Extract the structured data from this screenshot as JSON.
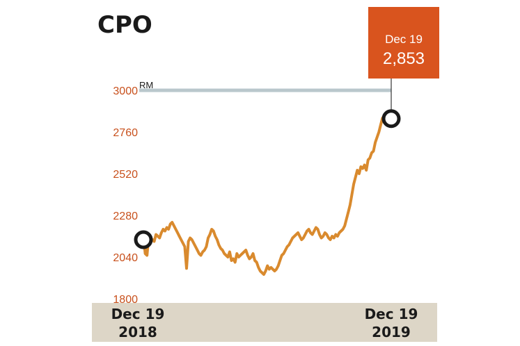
{
  "chart_data": {
    "type": "line",
    "title": "CPO",
    "ylabel": "RM",
    "ylim": [
      1800,
      3000
    ],
    "yticks": [
      1800,
      2040,
      2280,
      2520,
      2760,
      3000
    ],
    "ytick_labels": [
      "1800",
      "2040",
      "2280",
      "2520",
      "2760",
      "3000"
    ],
    "xtick_labels": [
      {
        "line1": "Dec 19",
        "line2": "2018"
      },
      {
        "line1": "Dec 19",
        "line2": "2019"
      }
    ],
    "callout": {
      "label": "Dec 19",
      "value": "2,853"
    },
    "colors": {
      "line": "#d98a2e",
      "accent": "#d9541e",
      "refline": "#b9c7cc",
      "axisband": "#ddd6c7",
      "ticks": "#c8501c"
    },
    "series": [
      {
        "values": [
          2160,
          2060,
          2050,
          2160,
          2150,
          2140,
          2130,
          2170,
          2160,
          2150,
          2180,
          2200,
          2190,
          2210,
          2200,
          2230,
          2240,
          2220,
          2200,
          2180,
          2160,
          2140,
          2120,
          2100,
          1975,
          2130,
          2150,
          2140,
          2120,
          2100,
          2080,
          2060,
          2050,
          2070,
          2080,
          2100,
          2150,
          2170,
          2200,
          2190,
          2160,
          2140,
          2110,
          2090,
          2080,
          2060,
          2050,
          2040,
          2070,
          2020,
          2030,
          2010,
          2060,
          2040,
          2050,
          2060,
          2070,
          2080,
          2050,
          2030,
          2040,
          2060,
          2020,
          2010,
          1980,
          1960,
          1950,
          1940,
          1960,
          1990,
          1970,
          1980,
          1970,
          1960,
          1970,
          1990,
          2020,
          2050,
          2060,
          2080,
          2100,
          2110,
          2130,
          2150,
          2160,
          2170,
          2180,
          2160,
          2140,
          2150,
          2170,
          2190,
          2200,
          2180,
          2170,
          2190,
          2210,
          2200,
          2170,
          2150,
          2160,
          2180,
          2170,
          2150,
          2140,
          2160,
          2150,
          2170,
          2160,
          2180,
          2190,
          2200,
          2220,
          2260,
          2300,
          2340,
          2400,
          2460,
          2500,
          2540,
          2520,
          2560,
          2550,
          2570,
          2540,
          2600,
          2610,
          2640,
          2650,
          2700,
          2730,
          2760,
          2800,
          2840,
          2853
        ]
      }
    ]
  }
}
